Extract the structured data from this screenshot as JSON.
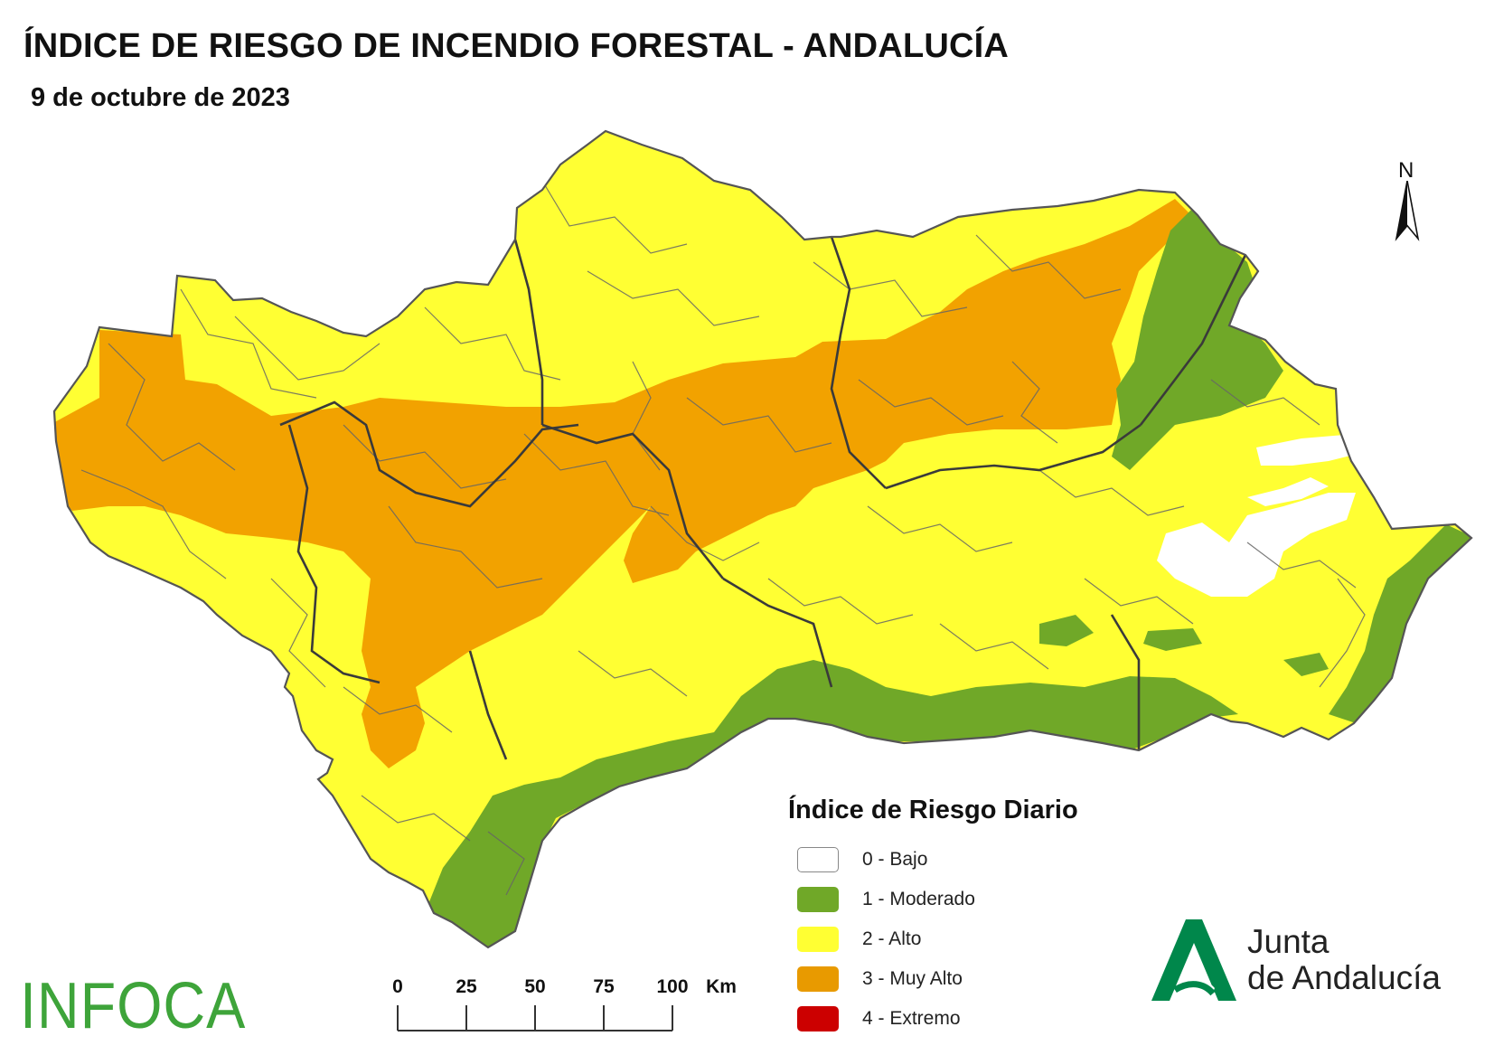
{
  "title": "ÍNDICE DE RIESGO DE INCENDIO FORESTAL - ANDALUCÍA",
  "date": "9 de octubre de 2023",
  "north_label": "N",
  "legend": {
    "title": "Índice de Riesgo Diario",
    "items": [
      {
        "label": "0 - Bajo",
        "color": "#ffffff"
      },
      {
        "label": "1 - Moderado",
        "color": "#70a828"
      },
      {
        "label": "2 - Alto",
        "color": "#ffff33"
      },
      {
        "label": "3 - Muy Alto",
        "color": "#f2a200"
      },
      {
        "label": "4 - Extremo",
        "color": "#cc0000"
      }
    ]
  },
  "scale": {
    "ticks": [
      "0",
      "25",
      "50",
      "75",
      "100"
    ],
    "unit": "Km"
  },
  "infoca_logo": "INFOCA",
  "junta_logo": {
    "line1": "Junta",
    "line2": "de Andalucía",
    "color": "#00874b"
  },
  "colors": {
    "border": "#555555",
    "province_border": "#3a3a3a"
  }
}
